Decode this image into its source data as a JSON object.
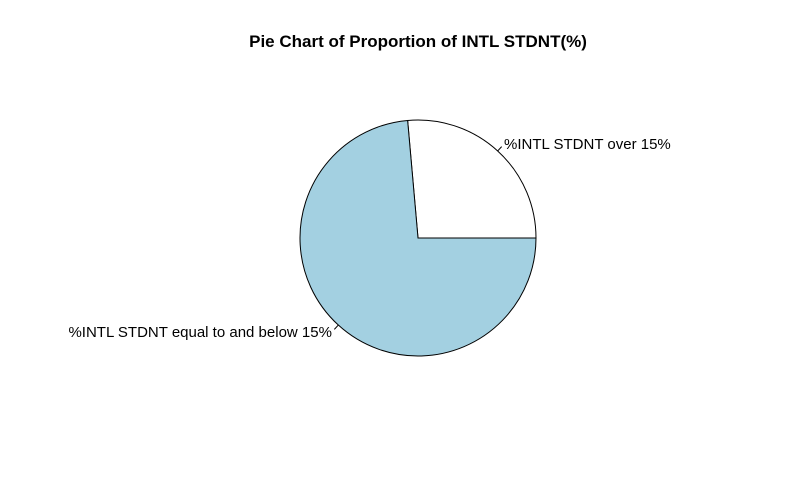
{
  "chart_data": {
    "type": "pie",
    "title": "Pie Chart of Proportion of INTL STDNT(%)",
    "slices": [
      {
        "label": "%INTL STDNT over 15%",
        "value": 0.264,
        "color": "#ffffff"
      },
      {
        "label": "%INTL STDNT equal to and below 15%",
        "value": 0.736,
        "color": "#a3d0e1"
      }
    ],
    "start_angle_deg": 0,
    "direction": "counterclockwise",
    "legend": "none"
  }
}
